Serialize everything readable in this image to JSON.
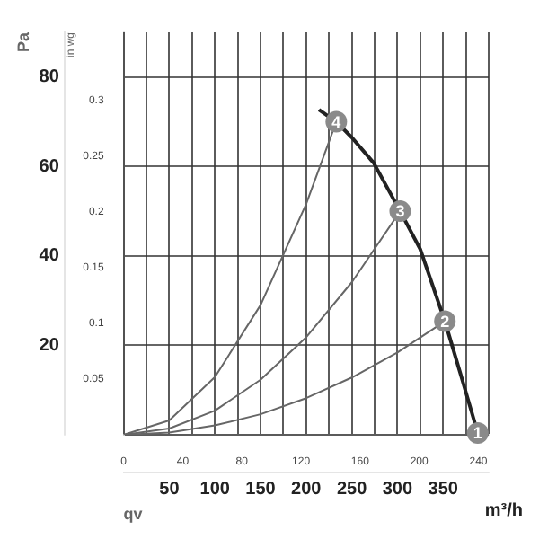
{
  "chart_data": {
    "type": "line",
    "xlabel": "qv",
    "ylabel": "Pa",
    "y2label": "in wg",
    "annotations": [
      "m³/h",
      {
        "text": "4",
        "x": 233,
        "y": 70
      },
      {
        "text": "3",
        "x": 303,
        "y": 50
      },
      {
        "text": "2",
        "x": 352,
        "y": 25.4
      },
      {
        "text": "1",
        "x": 388,
        "y": 0.4
      }
    ],
    "series": [
      {
        "color": "#222222",
        "x": [
          214,
          233,
          250,
          274,
          303,
          325,
          352,
          370,
          388
        ],
        "values": [
          72.7,
          70,
          66.5,
          60.8,
          50,
          41.5,
          25.4,
          13,
          0.4
        ]
      },
      {
        "color": "#666666",
        "x": [
          0,
          50,
          100,
          150,
          200,
          233
        ],
        "values": [
          0,
          3.2,
          12.9,
          29,
          51.6,
          70
        ]
      },
      {
        "color": "#666666",
        "x": [
          0,
          50,
          100,
          150,
          200,
          250,
          303
        ],
        "values": [
          0,
          1.4,
          5.4,
          12.3,
          21.8,
          34.1,
          50
        ]
      },
      {
        "color": "#666666",
        "x": [
          0,
          50,
          100,
          150,
          200,
          250,
          300,
          352
        ],
        "values": [
          0,
          0.5,
          2.1,
          4.6,
          8.2,
          12.8,
          18.4,
          25.4
        ]
      }
    ],
    "xlim": [
      0,
      400
    ],
    "xticks": [
      {
        "value": 0,
        "label": null
      },
      {
        "value": 25,
        "label": null
      },
      50,
      {
        "value": 75,
        "label": null
      },
      100,
      {
        "value": 125,
        "label": null
      },
      150,
      {
        "value": 175,
        "label": null
      },
      200,
      {
        "value": 225,
        "label": null
      },
      250,
      {
        "value": 275,
        "label": null
      },
      300,
      {
        "value": 325,
        "label": null
      },
      350,
      {
        "value": 375,
        "label": null
      },
      {
        "value": 400,
        "label": null
      }
    ],
    "ylim": [
      0,
      90
    ],
    "yticks": [
      {
        "value": 0,
        "label": null
      },
      20,
      40,
      60,
      80
    ],
    "x2lim": [
      0,
      247
    ],
    "x2ticks": [
      0,
      40,
      80,
      120,
      160,
      200,
      240
    ],
    "y2lim": [
      0,
      0.361
    ],
    "y2ticks": [
      0.05,
      0.1,
      0.15,
      0.2,
      0.25,
      0.3
    ],
    "grid": true,
    "legend": false,
    "marker": "none",
    "line_style": "solid"
  }
}
